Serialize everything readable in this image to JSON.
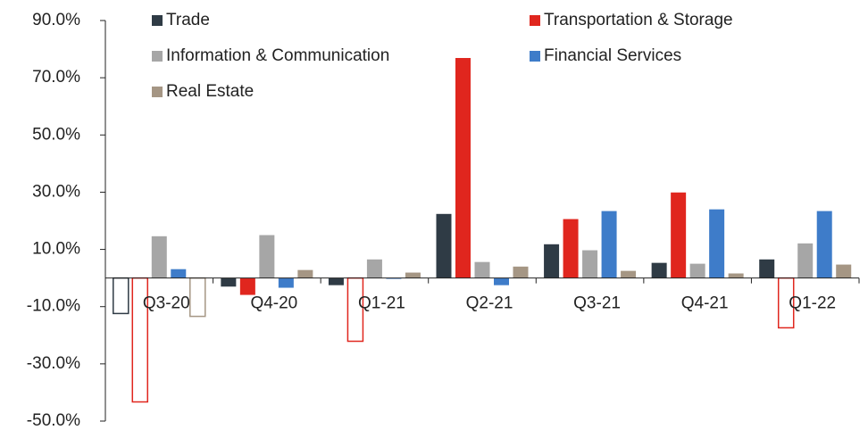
{
  "chart_data": {
    "type": "bar",
    "categories": [
      "Q3-20",
      "Q4-20",
      "Q1-21",
      "Q2-21",
      "Q3-21",
      "Q4-21",
      "Q1-22"
    ],
    "series": [
      {
        "name": "Trade",
        "color": "#2f3b45",
        "values": [
          -12.4,
          -3.0,
          -2.5,
          22.4,
          11.8,
          5.3,
          6.5
        ],
        "hollow": [
          true,
          false,
          false,
          false,
          false,
          false,
          false
        ]
      },
      {
        "name": "Transportation & Storage",
        "color": "#e0261e",
        "values": [
          -43.3,
          -5.9,
          -22.1,
          76.9,
          20.6,
          29.9,
          -17.4
        ],
        "hollow": [
          true,
          false,
          true,
          false,
          false,
          false,
          true
        ]
      },
      {
        "name": "Information & Communication",
        "color": "#a6a6a6",
        "values": [
          14.6,
          15.0,
          6.5,
          5.6,
          9.7,
          5.0,
          12.1
        ],
        "hollow": [
          false,
          false,
          false,
          false,
          false,
          false,
          false
        ]
      },
      {
        "name": "Financial Services",
        "color": "#3e7cc9",
        "values": [
          3.1,
          -3.4,
          -0.3,
          -2.5,
          23.4,
          24.0,
          23.4
        ],
        "hollow": [
          false,
          false,
          false,
          false,
          false,
          false,
          false
        ]
      },
      {
        "name": "Real Estate",
        "color": "#a59684",
        "values": [
          -13.4,
          2.8,
          1.9,
          4.0,
          2.5,
          1.6,
          4.7
        ],
        "hollow": [
          true,
          false,
          false,
          false,
          false,
          false,
          false
        ]
      }
    ],
    "ylim": [
      -50,
      90
    ],
    "yticks": [
      {
        "value": -50,
        "label": "-50.0%"
      },
      {
        "value": -30,
        "label": "-30.0%"
      },
      {
        "value": -10,
        "label": "-10.0%"
      },
      {
        "value": 10,
        "label": "10.0%"
      },
      {
        "value": 30,
        "label": "30.0%"
      },
      {
        "value": 50,
        "label": "50.0%"
      },
      {
        "value": 70,
        "label": "70.0%"
      },
      {
        "value": 90,
        "label": "90.0%"
      }
    ],
    "grid": false
  }
}
